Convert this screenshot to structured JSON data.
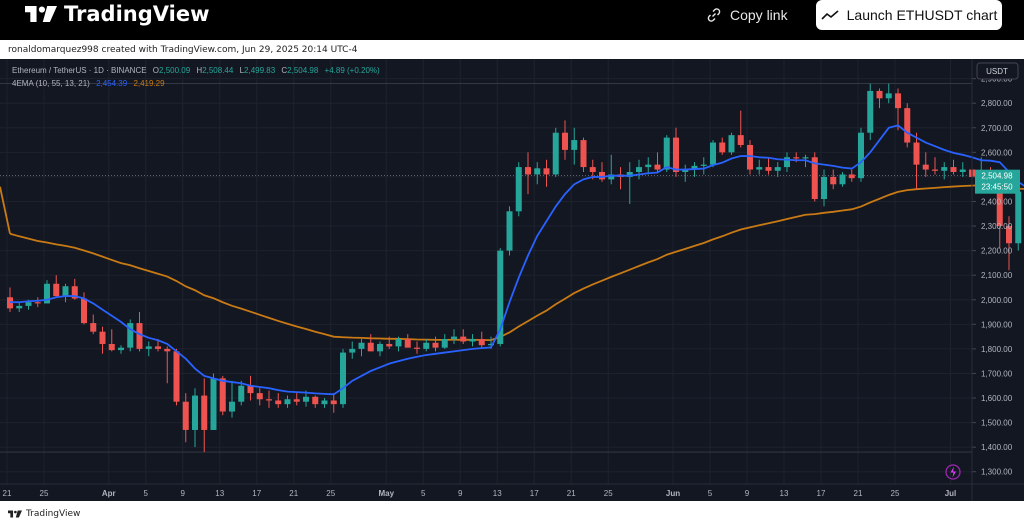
{
  "header": {
    "logo_text": "TradingView",
    "copy_link_label": "Copy link",
    "launch_label": "Launch ETHUSDT chart"
  },
  "caption": "ronaldomarquez998 created with TradingView.com, Jun 29, 2025 20:14 UTC-4",
  "footer": {
    "brand": "TradingView"
  },
  "legend": {
    "symbol": "Ethereum / TetherUS · 1D · BINANCE",
    "o_label": "O",
    "o_value": "2,500.09",
    "h_label": "H",
    "h_value": "2,508.44",
    "l_label": "L",
    "l_value": "2,499.83",
    "c_label": "C",
    "c_value": "2,504.98",
    "change": "+4.89 (+0.20%)",
    "indicator": "4EMA (10, 55, 13, 21)",
    "ema_fast_value": "2,454.39",
    "ema_slow_value": "2,419.29"
  },
  "price_axis": {
    "currency": "USDT",
    "last_price": "2,504.98",
    "countdown": "23:45:50",
    "ticks": [
      "2,900.00",
      "2,800.00",
      "2,700.00",
      "2,600.00",
      "2,500.00",
      "2,400.00",
      "2,300.00",
      "2,200.00",
      "2,100.00",
      "2,000.00",
      "1,900.00",
      "1,800.00",
      "1,700.00",
      "1,600.00",
      "1,500.00",
      "1,400.00",
      "1,300.00"
    ]
  },
  "time_axis": {
    "labels": [
      {
        "text": "21",
        "day": 0,
        "bold": false
      },
      {
        "text": "25",
        "day": 4,
        "bold": false
      },
      {
        "text": "Apr",
        "day": 11,
        "bold": true
      },
      {
        "text": "5",
        "day": 15,
        "bold": false
      },
      {
        "text": "9",
        "day": 19,
        "bold": false
      },
      {
        "text": "13",
        "day": 23,
        "bold": false
      },
      {
        "text": "17",
        "day": 27,
        "bold": false
      },
      {
        "text": "21",
        "day": 31,
        "bold": false
      },
      {
        "text": "25",
        "day": 35,
        "bold": false
      },
      {
        "text": "May",
        "day": 41,
        "bold": true
      },
      {
        "text": "5",
        "day": 45,
        "bold": false
      },
      {
        "text": "9",
        "day": 49,
        "bold": false
      },
      {
        "text": "13",
        "day": 53,
        "bold": false
      },
      {
        "text": "17",
        "day": 57,
        "bold": false
      },
      {
        "text": "21",
        "day": 61,
        "bold": false
      },
      {
        "text": "25",
        "day": 65,
        "bold": false
      },
      {
        "text": "Jun",
        "day": 72,
        "bold": true
      },
      {
        "text": "5",
        "day": 76,
        "bold": false
      },
      {
        "text": "9",
        "day": 80,
        "bold": false
      },
      {
        "text": "13",
        "day": 84,
        "bold": false
      },
      {
        "text": "17",
        "day": 88,
        "bold": false
      },
      {
        "text": "21",
        "day": 92,
        "bold": false
      },
      {
        "text": "25",
        "day": 96,
        "bold": false
      },
      {
        "text": "Jul",
        "day": 102,
        "bold": true
      }
    ]
  },
  "colors": {
    "background": "#131722",
    "up": "#26a69a",
    "down": "#ef5350",
    "ema_fast": "#2962ff",
    "ema_slow": "#c97a14",
    "text": "#b2b5be",
    "grid": "#2a2e39"
  },
  "chart_data": {
    "type": "candlestick",
    "symbol": "ETHUSDT",
    "timeframe": "1D",
    "ylim": [
      1250,
      2980
    ],
    "x_start": "2025-03-21",
    "candles": [
      {
        "o": 2010,
        "h": 2050,
        "l": 1950,
        "c": 1965
      },
      {
        "o": 1965,
        "h": 1990,
        "l": 1950,
        "c": 1975
      },
      {
        "o": 1975,
        "h": 2000,
        "l": 1960,
        "c": 1990
      },
      {
        "o": 1990,
        "h": 2010,
        "l": 1970,
        "c": 1985
      },
      {
        "o": 1985,
        "h": 2080,
        "l": 1985,
        "c": 2065
      },
      {
        "o": 2065,
        "h": 2100,
        "l": 2010,
        "c": 2015
      },
      {
        "o": 2015,
        "h": 2065,
        "l": 1990,
        "c": 2055
      },
      {
        "o": 2055,
        "h": 2085,
        "l": 2000,
        "c": 2005
      },
      {
        "o": 2005,
        "h": 2030,
        "l": 1900,
        "c": 1905
      },
      {
        "o": 1905,
        "h": 1940,
        "l": 1860,
        "c": 1870
      },
      {
        "o": 1870,
        "h": 1890,
        "l": 1780,
        "c": 1820
      },
      {
        "o": 1820,
        "h": 1880,
        "l": 1790,
        "c": 1795
      },
      {
        "o": 1795,
        "h": 1815,
        "l": 1780,
        "c": 1805
      },
      {
        "o": 1805,
        "h": 1920,
        "l": 1790,
        "c": 1905
      },
      {
        "o": 1905,
        "h": 1950,
        "l": 1790,
        "c": 1800
      },
      {
        "o": 1800,
        "h": 1830,
        "l": 1770,
        "c": 1810
      },
      {
        "o": 1810,
        "h": 1840,
        "l": 1790,
        "c": 1800
      },
      {
        "o": 1800,
        "h": 1810,
        "l": 1660,
        "c": 1790
      },
      {
        "o": 1790,
        "h": 1800,
        "l": 1570,
        "c": 1585
      },
      {
        "o": 1585,
        "h": 1620,
        "l": 1420,
        "c": 1470
      },
      {
        "o": 1470,
        "h": 1640,
        "l": 1400,
        "c": 1610
      },
      {
        "o": 1610,
        "h": 1680,
        "l": 1380,
        "c": 1470
      },
      {
        "o": 1470,
        "h": 1700,
        "l": 1470,
        "c": 1680
      },
      {
        "o": 1680,
        "h": 1690,
        "l": 1530,
        "c": 1545
      },
      {
        "o": 1545,
        "h": 1670,
        "l": 1520,
        "c": 1585
      },
      {
        "o": 1585,
        "h": 1670,
        "l": 1570,
        "c": 1650
      },
      {
        "o": 1650,
        "h": 1690,
        "l": 1590,
        "c": 1620
      },
      {
        "o": 1620,
        "h": 1640,
        "l": 1570,
        "c": 1595
      },
      {
        "o": 1595,
        "h": 1630,
        "l": 1560,
        "c": 1590
      },
      {
        "o": 1590,
        "h": 1620,
        "l": 1560,
        "c": 1575
      },
      {
        "o": 1575,
        "h": 1610,
        "l": 1560,
        "c": 1595
      },
      {
        "o": 1595,
        "h": 1620,
        "l": 1570,
        "c": 1585
      },
      {
        "o": 1585,
        "h": 1630,
        "l": 1565,
        "c": 1605
      },
      {
        "o": 1605,
        "h": 1610,
        "l": 1560,
        "c": 1575
      },
      {
        "o": 1575,
        "h": 1600,
        "l": 1560,
        "c": 1590
      },
      {
        "o": 1590,
        "h": 1620,
        "l": 1540,
        "c": 1575
      },
      {
        "o": 1575,
        "h": 1800,
        "l": 1560,
        "c": 1785
      },
      {
        "o": 1785,
        "h": 1830,
        "l": 1760,
        "c": 1800
      },
      {
        "o": 1800,
        "h": 1840,
        "l": 1770,
        "c": 1825
      },
      {
        "o": 1825,
        "h": 1860,
        "l": 1790,
        "c": 1790
      },
      {
        "o": 1790,
        "h": 1830,
        "l": 1770,
        "c": 1820
      },
      {
        "o": 1820,
        "h": 1850,
        "l": 1800,
        "c": 1810
      },
      {
        "o": 1810,
        "h": 1850,
        "l": 1790,
        "c": 1840
      },
      {
        "o": 1840,
        "h": 1860,
        "l": 1810,
        "c": 1805
      },
      {
        "o": 1805,
        "h": 1830,
        "l": 1780,
        "c": 1800
      },
      {
        "o": 1800,
        "h": 1840,
        "l": 1790,
        "c": 1825
      },
      {
        "o": 1825,
        "h": 1850,
        "l": 1790,
        "c": 1805
      },
      {
        "o": 1805,
        "h": 1860,
        "l": 1800,
        "c": 1840
      },
      {
        "o": 1840,
        "h": 1880,
        "l": 1820,
        "c": 1850
      },
      {
        "o": 1850,
        "h": 1880,
        "l": 1820,
        "c": 1830
      },
      {
        "o": 1830,
        "h": 1860,
        "l": 1810,
        "c": 1840
      },
      {
        "o": 1840,
        "h": 1870,
        "l": 1800,
        "c": 1815
      },
      {
        "o": 1815,
        "h": 1850,
        "l": 1800,
        "c": 1820
      },
      {
        "o": 1820,
        "h": 2210,
        "l": 1810,
        "c": 2200
      },
      {
        "o": 2200,
        "h": 2380,
        "l": 2180,
        "c": 2360
      },
      {
        "o": 2360,
        "h": 2560,
        "l": 2340,
        "c": 2540
      },
      {
        "o": 2540,
        "h": 2600,
        "l": 2430,
        "c": 2510
      },
      {
        "o": 2510,
        "h": 2560,
        "l": 2470,
        "c": 2535
      },
      {
        "o": 2535,
        "h": 2570,
        "l": 2460,
        "c": 2510
      },
      {
        "o": 2510,
        "h": 2700,
        "l": 2500,
        "c": 2680
      },
      {
        "o": 2680,
        "h": 2730,
        "l": 2570,
        "c": 2610
      },
      {
        "o": 2610,
        "h": 2700,
        "l": 2550,
        "c": 2650
      },
      {
        "o": 2650,
        "h": 2660,
        "l": 2520,
        "c": 2540
      },
      {
        "o": 2540,
        "h": 2570,
        "l": 2490,
        "c": 2520
      },
      {
        "o": 2520,
        "h": 2560,
        "l": 2480,
        "c": 2490
      },
      {
        "o": 2490,
        "h": 2590,
        "l": 2470,
        "c": 2510
      },
      {
        "o": 2510,
        "h": 2540,
        "l": 2450,
        "c": 2500
      },
      {
        "o": 2500,
        "h": 2560,
        "l": 2390,
        "c": 2520
      },
      {
        "o": 2520,
        "h": 2570,
        "l": 2490,
        "c": 2540
      },
      {
        "o": 2540,
        "h": 2580,
        "l": 2510,
        "c": 2550
      },
      {
        "o": 2550,
        "h": 2600,
        "l": 2520,
        "c": 2530
      },
      {
        "o": 2530,
        "h": 2670,
        "l": 2520,
        "c": 2660
      },
      {
        "o": 2660,
        "h": 2700,
        "l": 2500,
        "c": 2520
      },
      {
        "o": 2520,
        "h": 2550,
        "l": 2480,
        "c": 2530
      },
      {
        "o": 2530,
        "h": 2560,
        "l": 2500,
        "c": 2545
      },
      {
        "o": 2545,
        "h": 2580,
        "l": 2510,
        "c": 2550
      },
      {
        "o": 2550,
        "h": 2650,
        "l": 2540,
        "c": 2640
      },
      {
        "o": 2640,
        "h": 2660,
        "l": 2590,
        "c": 2600
      },
      {
        "o": 2600,
        "h": 2680,
        "l": 2590,
        "c": 2670
      },
      {
        "o": 2670,
        "h": 2770,
        "l": 2620,
        "c": 2630
      },
      {
        "o": 2630,
        "h": 2650,
        "l": 2510,
        "c": 2530
      },
      {
        "o": 2530,
        "h": 2570,
        "l": 2510,
        "c": 2540
      },
      {
        "o": 2540,
        "h": 2580,
        "l": 2510,
        "c": 2525
      },
      {
        "o": 2525,
        "h": 2560,
        "l": 2500,
        "c": 2540
      },
      {
        "o": 2540,
        "h": 2600,
        "l": 2520,
        "c": 2580
      },
      {
        "o": 2580,
        "h": 2600,
        "l": 2560,
        "c": 2575
      },
      {
        "o": 2575,
        "h": 2590,
        "l": 2540,
        "c": 2580
      },
      {
        "o": 2580,
        "h": 2600,
        "l": 2400,
        "c": 2410
      },
      {
        "o": 2410,
        "h": 2530,
        "l": 2380,
        "c": 2500
      },
      {
        "o": 2500,
        "h": 2530,
        "l": 2450,
        "c": 2470
      },
      {
        "o": 2470,
        "h": 2520,
        "l": 2460,
        "c": 2510
      },
      {
        "o": 2510,
        "h": 2530,
        "l": 2480,
        "c": 2495
      },
      {
        "o": 2495,
        "h": 2700,
        "l": 2480,
        "c": 2680
      },
      {
        "o": 2680,
        "h": 2880,
        "l": 2650,
        "c": 2850
      },
      {
        "o": 2850,
        "h": 2860,
        "l": 2780,
        "c": 2820
      },
      {
        "o": 2820,
        "h": 2880,
        "l": 2800,
        "c": 2840
      },
      {
        "o": 2840,
        "h": 2860,
        "l": 2690,
        "c": 2780
      },
      {
        "o": 2780,
        "h": 2800,
        "l": 2620,
        "c": 2640
      },
      {
        "o": 2640,
        "h": 2680,
        "l": 2450,
        "c": 2550
      },
      {
        "o": 2550,
        "h": 2600,
        "l": 2500,
        "c": 2530
      },
      {
        "o": 2530,
        "h": 2580,
        "l": 2510,
        "c": 2525
      },
      {
        "o": 2525,
        "h": 2560,
        "l": 2490,
        "c": 2540
      },
      {
        "o": 2540,
        "h": 2570,
        "l": 2510,
        "c": 2520
      },
      {
        "o": 2520,
        "h": 2560,
        "l": 2500,
        "c": 2530
      },
      {
        "o": 2530,
        "h": 2550,
        "l": 2480,
        "c": 2500
      },
      {
        "o": 2500,
        "h": 2580,
        "l": 2490,
        "c": 2510
      },
      {
        "o": 2510,
        "h": 2540,
        "l": 2480,
        "c": 2480
      },
      {
        "o": 2480,
        "h": 2500,
        "l": 2210,
        "c": 2300
      },
      {
        "o": 2300,
        "h": 2340,
        "l": 2120,
        "c": 2230
      },
      {
        "o": 2230,
        "h": 2480,
        "l": 2200,
        "c": 2440
      },
      {
        "o": 2440,
        "h": 2460,
        "l": 2390,
        "c": 2420
      },
      {
        "o": 2420,
        "h": 2490,
        "l": 2400,
        "c": 2450
      },
      {
        "o": 2450,
        "h": 2530,
        "l": 2400,
        "c": 2410
      },
      {
        "o": 2410,
        "h": 2460,
        "l": 2380,
        "c": 2440
      },
      {
        "o": 2440,
        "h": 2480,
        "l": 2400,
        "c": 2420
      },
      {
        "o": 2420,
        "h": 2460,
        "l": 2410,
        "c": 2440
      },
      {
        "o": 2440,
        "h": 2500,
        "l": 2430,
        "c": 2435
      },
      {
        "o": 2435,
        "h": 2520,
        "l": 2430,
        "c": 2500
      },
      {
        "o": 2500,
        "h": 2508,
        "l": 2499,
        "c": 2505
      }
    ],
    "ema_fast": [
      1990,
      1990,
      1994,
      1996,
      2000,
      2010,
      2015,
      2015,
      2005,
      1985,
      1960,
      1935,
      1910,
      1880,
      1860,
      1845,
      1835,
      1820,
      1790,
      1760,
      1720,
      1690,
      1680,
      1670,
      1665,
      1660,
      1650,
      1645,
      1640,
      1632,
      1626,
      1624,
      1622,
      1619,
      1617,
      1615,
      1640,
      1670,
      1690,
      1710,
      1725,
      1740,
      1750,
      1760,
      1768,
      1775,
      1780,
      1785,
      1790,
      1795,
      1800,
      1803,
      1806,
      1880,
      1990,
      2090,
      2180,
      2260,
      2320,
      2380,
      2430,
      2470,
      2490,
      2500,
      2500,
      2505,
      2505,
      2505,
      2510,
      2515,
      2518,
      2540,
      2530,
      2530,
      2532,
      2534,
      2548,
      2558,
      2575,
      2585,
      2585,
      2580,
      2578,
      2572,
      2570,
      2568,
      2568,
      2555,
      2550,
      2545,
      2538,
      2534,
      2560,
      2600,
      2650,
      2700,
      2710,
      2680,
      2660,
      2640,
      2625,
      2610,
      2598,
      2590,
      2580,
      2568,
      2566,
      2560,
      2520,
      2480,
      2455,
      2445,
      2440,
      2432,
      2430,
      2428,
      2428,
      2425,
      2430,
      2445,
      2454
    ]
  }
}
